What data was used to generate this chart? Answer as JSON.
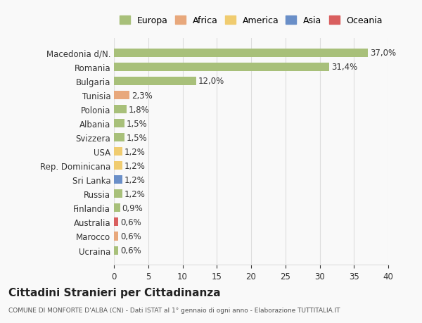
{
  "categories": [
    "Macedonia d/N.",
    "Romania",
    "Bulgaria",
    "Tunisia",
    "Polonia",
    "Albania",
    "Svizzera",
    "USA",
    "Rep. Dominicana",
    "Sri Lanka",
    "Russia",
    "Finlandia",
    "Australia",
    "Marocco",
    "Ucraina"
  ],
  "values": [
    37.0,
    31.4,
    12.0,
    2.3,
    1.8,
    1.5,
    1.5,
    1.2,
    1.2,
    1.2,
    1.2,
    0.9,
    0.6,
    0.6,
    0.6
  ],
  "labels": [
    "37,0%",
    "31,4%",
    "12,0%",
    "2,3%",
    "1,8%",
    "1,5%",
    "1,5%",
    "1,2%",
    "1,2%",
    "1,2%",
    "1,2%",
    "0,9%",
    "0,6%",
    "0,6%",
    "0,6%"
  ],
  "colors": [
    "#a8c07a",
    "#a8c07a",
    "#a8c07a",
    "#e8a87c",
    "#a8c07a",
    "#a8c07a",
    "#a8c07a",
    "#f0cc70",
    "#f0cc70",
    "#6a8fc8",
    "#a8c07a",
    "#a8c07a",
    "#d95f5f",
    "#e8a87c",
    "#a8c07a"
  ],
  "legend": [
    {
      "label": "Europa",
      "color": "#a8c07a"
    },
    {
      "label": "Africa",
      "color": "#e8a87c"
    },
    {
      "label": "America",
      "color": "#f0cc70"
    },
    {
      "label": "Asia",
      "color": "#6a8fc8"
    },
    {
      "label": "Oceania",
      "color": "#d95f5f"
    }
  ],
  "xlim": [
    0,
    40
  ],
  "xticks": [
    0,
    5,
    10,
    15,
    20,
    25,
    30,
    35,
    40
  ],
  "title": "Cittadini Stranieri per Cittadinanza",
  "subtitle": "COMUNE DI MONFORTE D'ALBA (CN) - Dati ISTAT al 1° gennaio di ogni anno - Elaborazione TUTTITALIA.IT",
  "bg_color": "#f9f9f9",
  "grid_color": "#dddddd"
}
